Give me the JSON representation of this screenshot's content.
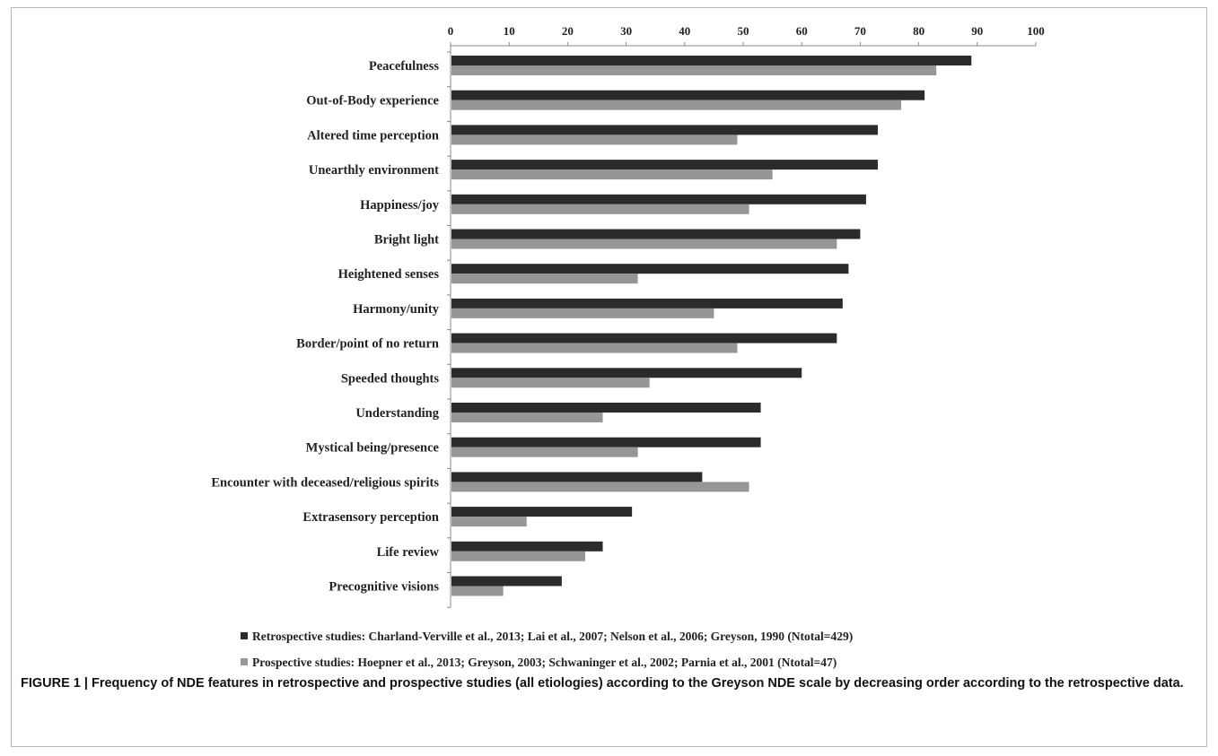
{
  "chart_data": {
    "type": "bar",
    "orientation": "horizontal",
    "categories": [
      "Peacefulness",
      "Out-of-Body experience",
      "Altered time perception",
      "Unearthly environment",
      "Happiness/joy",
      "Bright light",
      "Heightened senses",
      "Harmony/unity",
      "Border/point of no return",
      "Speeded thoughts",
      "Understanding",
      "Mystical being/presence",
      "Encounter with deceased/religious spirits",
      "Extrasensory perception",
      "Life review",
      "Precognitive visions"
    ],
    "series": [
      {
        "name": "Retrospective studies: Charland-Verville et al., 2013;  Lai et al., 2007; Nelson et al., 2006; Greyson, 1990 (Ntotal=429)",
        "color": "#2b2b2b",
        "values": [
          89,
          81,
          73,
          73,
          71,
          70,
          68,
          67,
          66,
          60,
          53,
          53,
          43,
          31,
          26,
          19
        ]
      },
      {
        "name": "Prospective studies: Hoepner et al., 2013; Greyson, 2003; Schwaninger et al., 2002; Parnia et al., 2001 (Ntotal=47)",
        "color": "#969696",
        "values": [
          83,
          77,
          49,
          55,
          51,
          66,
          32,
          45,
          49,
          34,
          26,
          32,
          51,
          13,
          23,
          9
        ]
      }
    ],
    "xlim": [
      0,
      100
    ],
    "xticks": [
      0,
      10,
      20,
      30,
      40,
      50,
      60,
      70,
      80,
      90,
      100
    ],
    "axis_position": "top",
    "grid": false,
    "legend_position": "bottom"
  },
  "caption": "FIGURE 1 | Frequency of NDE features in retrospective and prospective studies (all etiologies) according to the Greyson NDE scale by decreasing order according to the retrospective data."
}
